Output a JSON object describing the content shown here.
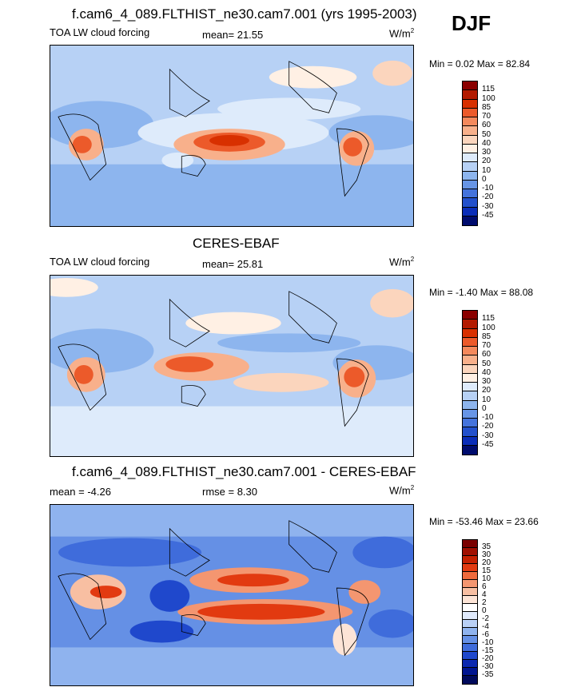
{
  "season": "DJF",
  "panels": [
    {
      "title": "f.cam6_4_089.FLTHIST_ne30.cam7.001 (yrs 1995-2003)",
      "left_label": "TOA LW cloud forcing",
      "mid_label": "mean=  21.55",
      "units_base": "W/m",
      "units_exp": "2",
      "minmax": "Min =   0.02 Max =  82.84",
      "colorbar_labels": [
        "115",
        "100",
        "85",
        "70",
        "60",
        "50",
        "40",
        "30",
        "20",
        "10",
        "0",
        "-10",
        "-20",
        "-30",
        "-45"
      ],
      "colorbar_colors": [
        "#8b0000",
        "#b31a00",
        "#d83000",
        "#ec5a2a",
        "#f4895c",
        "#f8b08b",
        "#fbd5bd",
        "#fff0e4",
        "#deebfb",
        "#b7d1f5",
        "#8db5ee",
        "#6795e6",
        "#4473dc",
        "#2250cc",
        "#0a2db8",
        "#000c6e"
      ]
    },
    {
      "title": "CERES-EBAF",
      "left_label": "TOA LW cloud forcing",
      "mid_label": "mean=  25.81",
      "units_base": "W/m",
      "units_exp": "2",
      "minmax": "Min =  -1.40 Max =  88.08",
      "colorbar_labels": [
        "115",
        "100",
        "85",
        "70",
        "60",
        "50",
        "40",
        "30",
        "20",
        "10",
        "0",
        "-10",
        "-20",
        "-30",
        "-45"
      ],
      "colorbar_colors": [
        "#8b0000",
        "#b31a00",
        "#d83000",
        "#ec5a2a",
        "#f4895c",
        "#f8b08b",
        "#fbd5bd",
        "#fff0e4",
        "#deebfb",
        "#b7d1f5",
        "#8db5ee",
        "#6795e6",
        "#4473dc",
        "#2250cc",
        "#0a2db8",
        "#000c6e"
      ]
    },
    {
      "title": "f.cam6_4_089.FLTHIST_ne30.cam7.001 - CERES-EBAF",
      "left_label": "mean =  -4.26",
      "mid_label": "rmse =   8.30",
      "units_base": "W/m",
      "units_exp": "2",
      "minmax": "Min = -53.46 Max =  23.66",
      "colorbar_labels": [
        "35",
        "30",
        "20",
        "15",
        "10",
        "6",
        "4",
        "2",
        "0",
        "-2",
        "-4",
        "-6",
        "-10",
        "-15",
        "-20",
        "-30",
        "-35"
      ],
      "colorbar_colors": [
        "#7a0000",
        "#a00f00",
        "#c52000",
        "#e23a10",
        "#ef6a3c",
        "#f49670",
        "#f8bfa2",
        "#fde4d6",
        "#ffffff",
        "#dfe9fb",
        "#b9d0f5",
        "#8fb3ee",
        "#6590e5",
        "#3f6cdb",
        "#1f48cc",
        "#0b28b0",
        "#001590",
        "#000a5c"
      ]
    }
  ]
}
